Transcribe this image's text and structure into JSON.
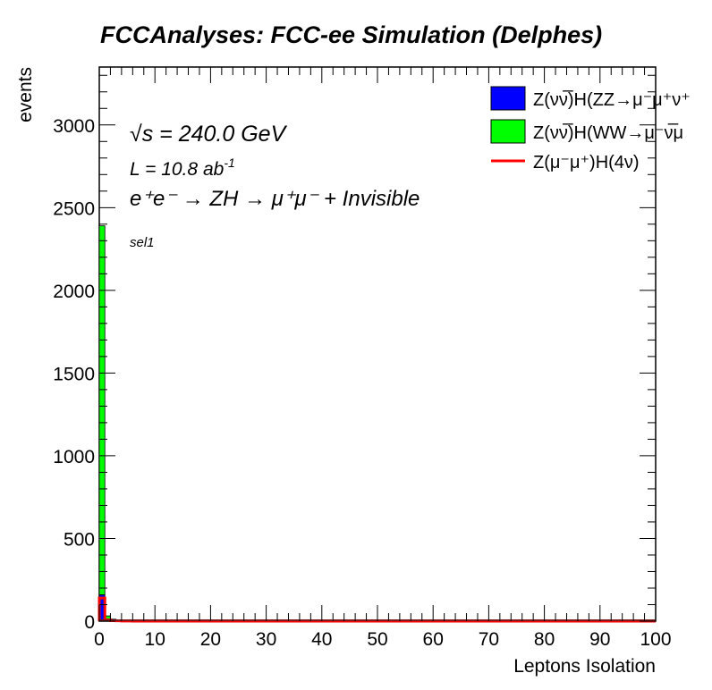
{
  "chart_data": {
    "type": "bar",
    "subtype": "stacked-histogram",
    "title": "FCCAnalyses: FCC-ee Simulation (Delphes)",
    "xlabel": "Leptons Isolation",
    "ylabel": "events",
    "xlim": [
      0,
      100
    ],
    "ylim": [
      0,
      3350
    ],
    "x_ticks": [
      0,
      10,
      20,
      30,
      40,
      50,
      60,
      70,
      80,
      90,
      100
    ],
    "x_tick_labels": [
      "0",
      "10",
      "20",
      "30",
      "40",
      "50",
      "60",
      "70",
      "80",
      "90",
      "100"
    ],
    "y_ticks": [
      0,
      500,
      1000,
      1500,
      2000,
      2500,
      3000
    ],
    "y_tick_labels": [
      "0",
      "500",
      "1000",
      "1500",
      "2000",
      "2500",
      "3000"
    ],
    "grid": false,
    "legend_position": "top-right",
    "bin_edges": [
      0,
      1,
      2,
      3,
      4,
      5,
      6,
      7,
      8,
      9,
      10
    ],
    "series": [
      {
        "name": "Z(νν̅)H(ZZ→μ⁻μ⁺ν⁺",
        "style": "filled",
        "color": "#0000ff",
        "values": [
          160,
          12,
          4,
          2,
          1,
          1,
          0,
          0,
          0,
          0
        ]
      },
      {
        "name": "Z(νν̅)H(WW→μ⁻ν̅μ",
        "style": "filled",
        "color": "#00ff00",
        "values": [
          2230,
          20,
          8,
          3,
          2,
          1,
          1,
          0,
          0,
          0
        ]
      },
      {
        "name": "Z(μ⁻μ⁺)H(4ν)",
        "style": "line",
        "color": "#ff0000",
        "values": [
          140,
          8,
          3,
          2,
          1,
          1,
          0,
          0,
          0,
          0
        ]
      }
    ],
    "annotations": {
      "sqrt_s": "√s = 240.0 GeV",
      "lumi_main": "L = 10.8 ab",
      "lumi_sup": "-1",
      "process": "e⁺e⁻ → ZH → μ⁺μ⁻ + Invisible",
      "selection": "sel1"
    }
  }
}
